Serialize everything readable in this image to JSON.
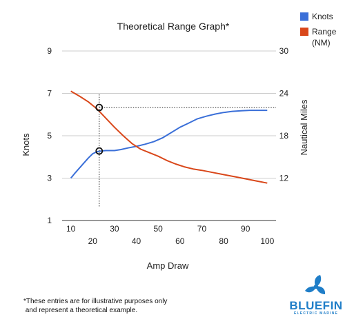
{
  "chart_data": {
    "type": "line",
    "title": "Theoretical Range Graph*",
    "xlabel": "Amp Draw",
    "ylabel_left": "Knots",
    "ylabel_right": "Nautical Miles",
    "x_ticks_top_row": [
      "10",
      "30",
      "50",
      "70",
      "90"
    ],
    "x_ticks_bottom_row": [
      "20",
      "40",
      "60",
      "80",
      "100"
    ],
    "x_tick_values_top": [
      10,
      30,
      50,
      70,
      90
    ],
    "x_tick_values_bottom": [
      20,
      40,
      60,
      80,
      100
    ],
    "xlim": [
      6,
      104
    ],
    "y_left_ticks": [
      "9",
      "7",
      "5",
      "3",
      "1"
    ],
    "y_left_tick_values": [
      9,
      7,
      5,
      3,
      1
    ],
    "y_left_lim": [
      1,
      9
    ],
    "y_right_ticks": [
      "30",
      "24",
      "18",
      "12"
    ],
    "y_right_tick_values": [
      30,
      24,
      18,
      12
    ],
    "y_right_lim": [
      6,
      30
    ],
    "grid": true,
    "legend_position": "top-right",
    "series": [
      {
        "name": "Knots",
        "axis": "left",
        "color": "#3a6fd8",
        "x": [
          10,
          12,
          15,
          18,
          20,
          22,
          24,
          26,
          28,
          30,
          33,
          36,
          40,
          44,
          48,
          52,
          56,
          60,
          64,
          68,
          72,
          76,
          80,
          84,
          88,
          92,
          96,
          100
        ],
        "y": [
          3.0,
          3.25,
          3.6,
          3.95,
          4.15,
          4.25,
          4.28,
          4.3,
          4.3,
          4.3,
          4.35,
          4.42,
          4.5,
          4.6,
          4.72,
          4.9,
          5.15,
          5.4,
          5.6,
          5.8,
          5.92,
          6.02,
          6.1,
          6.15,
          6.18,
          6.2,
          6.2,
          6.2
        ]
      },
      {
        "name": "Range",
        "name_line2": "(NM)",
        "axis": "right",
        "color": "#d9471a",
        "x": [
          10,
          14,
          18,
          22,
          26,
          30,
          34,
          38,
          42,
          46,
          50,
          54,
          58,
          62,
          66,
          70,
          75,
          80,
          85,
          90,
          95,
          100
        ],
        "y": [
          24.3,
          23.6,
          22.8,
          21.8,
          20.5,
          19.2,
          18.0,
          16.9,
          16.1,
          15.6,
          15.1,
          14.5,
          14.0,
          13.6,
          13.3,
          13.1,
          12.8,
          12.5,
          12.2,
          11.9,
          11.6,
          11.3
        ]
      }
    ],
    "annotations": {
      "vertical_x": 23,
      "knots_marker_y": 4.28,
      "range_marker_y": 22.0,
      "horizontal_to_x": 104
    }
  },
  "footnote": {
    "line1": "*These entries are for illustrative purposes only",
    "line2": " and represent a theoretical example."
  },
  "logo": {
    "brand": "BLUEFIN",
    "tagline": "ELECTRIC MARINE",
    "color": "#1f7ec8"
  }
}
